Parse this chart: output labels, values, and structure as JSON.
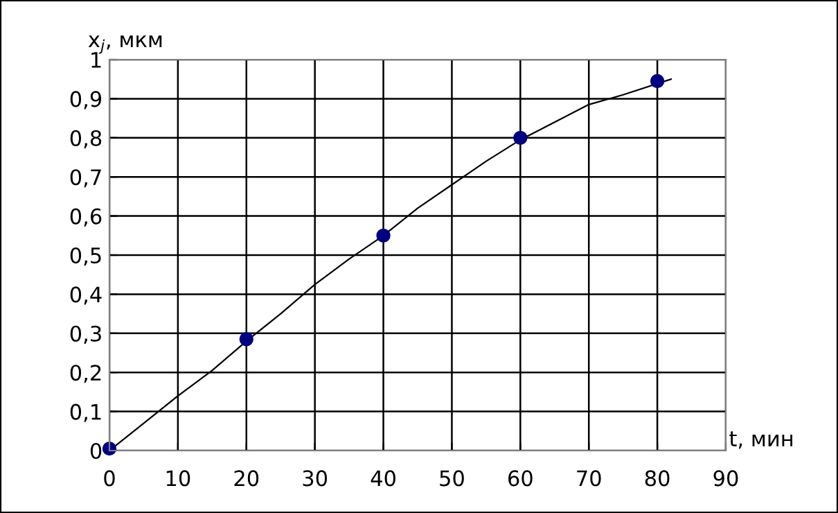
{
  "chart_data": {
    "type": "scatter",
    "xlabel": "t, мин",
    "ylabel": "x$_{j}$, мкм",
    "series": [
      {
        "color": "#000080",
        "marker": "circle",
        "x": [
          0,
          20,
          40,
          60,
          80
        ],
        "values": [
          0.005,
          0.285,
          0.55,
          0.8,
          0.945
        ]
      },
      {
        "type": "line",
        "color": "#000000",
        "marker": "none",
        "line_style": "solid",
        "x": [
          0,
          5,
          10,
          15,
          20,
          25,
          30,
          35,
          40,
          45,
          50,
          55,
          60,
          65,
          70,
          75,
          82
        ],
        "values": [
          0,
          0.07,
          0.14,
          0.205,
          0.28,
          0.35,
          0.425,
          0.49,
          0.55,
          0.62,
          0.68,
          0.74,
          0.795,
          0.84,
          0.885,
          0.91,
          0.95
        ]
      }
    ],
    "xlim": [
      0,
      90
    ],
    "xticks": [
      0,
      10,
      20,
      30,
      40,
      50,
      60,
      70,
      80,
      90
    ],
    "ylim": [
      0,
      1
    ],
    "yticks": [
      0,
      {
        "value": 0.1,
        "label": "0,1"
      },
      {
        "value": 0.2,
        "label": "0,2"
      },
      {
        "value": 0.3,
        "label": "0,3"
      },
      {
        "value": 0.4,
        "label": "0,4"
      },
      {
        "value": 0.5,
        "label": "0,5"
      },
      {
        "value": 0.6,
        "label": "0,6"
      },
      {
        "value": 0.7,
        "label": "0,7"
      },
      {
        "value": 0.8,
        "label": "0,8"
      },
      {
        "value": 0.9,
        "label": "0,9"
      },
      1
    ],
    "grid": true,
    "legend": false
  }
}
